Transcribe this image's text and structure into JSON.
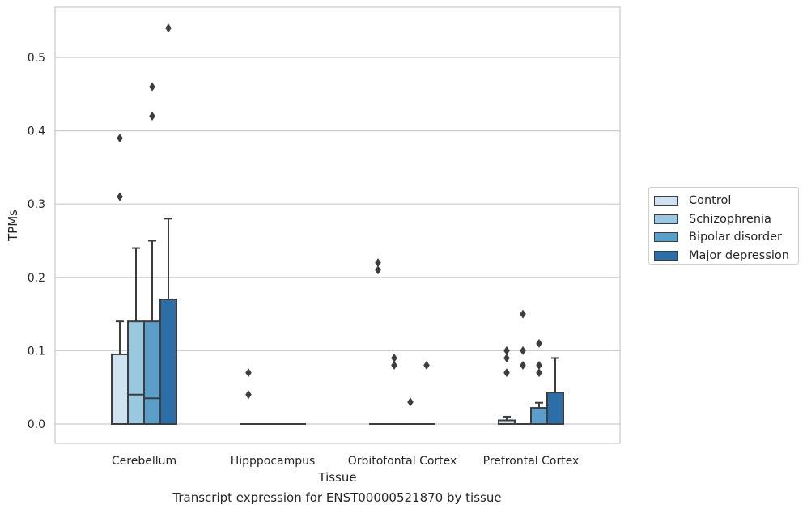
{
  "chart_data": {
    "type": "box",
    "title": "",
    "caption": "Transcript expression for ENST00000521870 by tissue",
    "xlabel": "Tissue",
    "ylabel": "TPMs",
    "ylim": [
      -0.027,
      0.57
    ],
    "yticks": [
      "0.0",
      "0.1",
      "0.2",
      "0.3",
      "0.4",
      "0.5"
    ],
    "grid": true,
    "legend_position": "right",
    "categories": [
      "Cerebellum",
      "Hipppocampus",
      "Orbitofontal Cortex",
      "Prefrontal Cortex"
    ],
    "series": [
      {
        "name": "Control",
        "color": "#d0e1f2",
        "boxes": [
          {
            "q1": 0.0,
            "median": 0.0,
            "q3": 0.095,
            "whisker_low": 0.0,
            "whisker_high": 0.14,
            "outliers": [
              0.31,
              0.39
            ]
          },
          {
            "q1": 0.0,
            "median": 0.0,
            "q3": 0.0,
            "whisker_low": 0.0,
            "whisker_high": 0.0,
            "outliers": [
              0.04,
              0.07
            ]
          },
          {
            "q1": 0.0,
            "median": 0.0,
            "q3": 0.0,
            "whisker_low": 0.0,
            "whisker_high": 0.0,
            "outliers": [
              0.21,
              0.22
            ]
          },
          {
            "q1": 0.0,
            "median": 0.0,
            "q3": 0.005,
            "whisker_low": 0.0,
            "whisker_high": 0.01,
            "outliers": [
              0.07,
              0.09,
              0.1
            ]
          }
        ]
      },
      {
        "name": "Schizophrenia",
        "color": "#9ac8e0",
        "boxes": [
          {
            "q1": 0.0,
            "median": 0.04,
            "q3": 0.14,
            "whisker_low": 0.0,
            "whisker_high": 0.24,
            "outliers": []
          },
          {
            "q1": 0.0,
            "median": 0.0,
            "q3": 0.0,
            "whisker_low": 0.0,
            "whisker_high": 0.0,
            "outliers": []
          },
          {
            "q1": 0.0,
            "median": 0.0,
            "q3": 0.0,
            "whisker_low": 0.0,
            "whisker_high": 0.0,
            "outliers": [
              0.08,
              0.09
            ]
          },
          {
            "q1": 0.0,
            "median": 0.0,
            "q3": 0.0,
            "whisker_low": 0.0,
            "whisker_high": 0.0,
            "outliers": [
              0.08,
              0.1,
              0.15
            ]
          }
        ]
      },
      {
        "name": "Bipolar disorder",
        "color": "#5a9ec9",
        "boxes": [
          {
            "q1": 0.0,
            "median": 0.035,
            "q3": 0.14,
            "whisker_low": 0.0,
            "whisker_high": 0.25,
            "outliers": [
              0.42,
              0.46
            ]
          },
          {
            "q1": 0.0,
            "median": 0.0,
            "q3": 0.0,
            "whisker_low": 0.0,
            "whisker_high": 0.0,
            "outliers": []
          },
          {
            "q1": 0.0,
            "median": 0.0,
            "q3": 0.0,
            "whisker_low": 0.0,
            "whisker_high": 0.0,
            "outliers": [
              0.03
            ]
          },
          {
            "q1": 0.0,
            "median": 0.0,
            "q3": 0.022,
            "whisker_low": 0.0,
            "whisker_high": 0.029,
            "outliers": [
              0.07,
              0.08,
              0.11
            ]
          }
        ]
      },
      {
        "name": "Major depression",
        "color": "#2b6ea8",
        "boxes": [
          {
            "q1": 0.0,
            "median": 0.0,
            "q3": 0.17,
            "whisker_low": 0.0,
            "whisker_high": 0.28,
            "outliers": [
              0.54
            ]
          },
          {
            "q1": 0.0,
            "median": 0.0,
            "q3": 0.0,
            "whisker_low": 0.0,
            "whisker_high": 0.0,
            "outliers": []
          },
          {
            "q1": 0.0,
            "median": 0.0,
            "q3": 0.0,
            "whisker_low": 0.0,
            "whisker_high": 0.0,
            "outliers": [
              0.08
            ]
          },
          {
            "q1": 0.0,
            "median": 0.0,
            "q3": 0.043,
            "whisker_low": 0.0,
            "whisker_high": 0.09,
            "outliers": []
          }
        ]
      }
    ]
  }
}
